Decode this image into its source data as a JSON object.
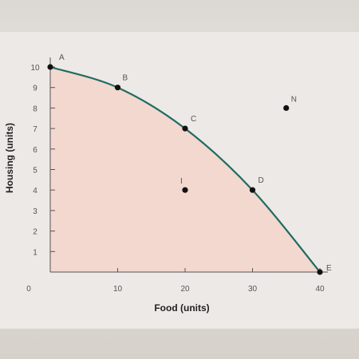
{
  "chart_data": {
    "type": "line",
    "xlabel": "Food (units)",
    "ylabel": "Housing (units)",
    "xlim": [
      0,
      40
    ],
    "ylim": [
      0,
      10
    ],
    "x_ticks": [
      "0",
      "10",
      "20",
      "30",
      "40"
    ],
    "y_ticks": [
      "1",
      "2",
      "3",
      "4",
      "5",
      "6",
      "7",
      "8",
      "9",
      "10"
    ],
    "grid": false,
    "colors": {
      "curve": "#1f6b62",
      "shade": "#f2d8cf",
      "point": "#111111",
      "axis": "#555555"
    },
    "series": [
      {
        "x": [
          0,
          10,
          20,
          30,
          40
        ],
        "y": [
          10,
          9,
          7,
          4,
          0
        ]
      }
    ],
    "points": [
      {
        "label": "A",
        "x": 0,
        "y": 10,
        "on_curve": true
      },
      {
        "label": "B",
        "x": 10,
        "y": 9,
        "on_curve": true
      },
      {
        "label": "C",
        "x": 20,
        "y": 7,
        "on_curve": true
      },
      {
        "label": "D",
        "x": 30,
        "y": 4,
        "on_curve": true
      },
      {
        "label": "E",
        "x": 40,
        "y": 0,
        "on_curve": true
      },
      {
        "label": "I",
        "x": 20,
        "y": 4,
        "on_curve": false
      },
      {
        "label": "N",
        "x": 35,
        "y": 8,
        "on_curve": false
      }
    ]
  }
}
